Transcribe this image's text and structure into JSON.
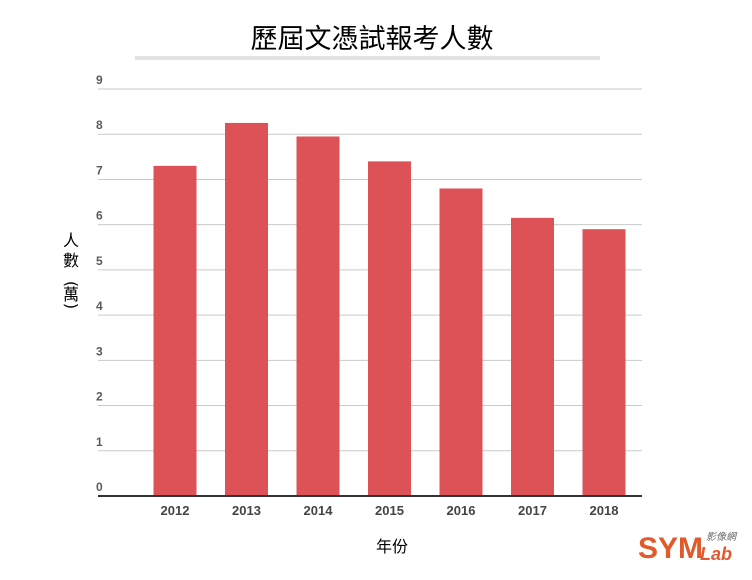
{
  "chart_data": {
    "type": "bar",
    "title": "歷屆文憑試報考人數",
    "xlabel": "年份",
    "ylabel_chars": [
      "人",
      "數",
      "(",
      "萬",
      ")"
    ],
    "categories": [
      "2012",
      "2013",
      "2014",
      "2015",
      "2016",
      "2017",
      "2018"
    ],
    "values": [
      7.3,
      8.25,
      7.95,
      7.4,
      6.8,
      6.15,
      5.9
    ],
    "y_ticks": [
      "0",
      "1",
      "2",
      "3",
      "4",
      "5",
      "6",
      "7",
      "8",
      "9"
    ],
    "ylim": [
      0,
      9
    ],
    "grid": true,
    "bar_color": "#dc5257"
  },
  "watermark": {
    "main": "SYM",
    "sub": "Lab",
    "script": "影像網"
  }
}
